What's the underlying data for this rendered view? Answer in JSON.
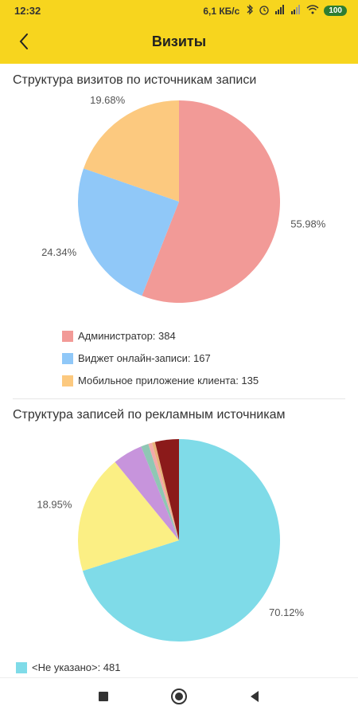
{
  "status_bar": {
    "time": "12:32",
    "speed": "6,1 КБ/с",
    "battery": "100"
  },
  "header": {
    "title": "Визиты"
  },
  "colors": {
    "header_bg": "#f7d51e",
    "admin": "#f29a97",
    "widget": "#90c8f8",
    "mobile": "#fcc97f",
    "unspecified": "#7fdbe8",
    "yellow_slice": "#fbef84",
    "purple_slice": "#c794dc",
    "dark_red_slice": "#8b1a1a"
  },
  "chart_data": [
    {
      "type": "pie",
      "title": "Структура визитов по источникам записи",
      "slices": [
        {
          "label": "Администратор: 384",
          "value": 55.98,
          "display": "55.98%",
          "color": "#f29a97"
        },
        {
          "label": "Виджет онлайн-записи: 167",
          "value": 24.34,
          "display": "24.34%",
          "color": "#90c8f8"
        },
        {
          "label": "Мобильное приложение клиента: 135",
          "value": 19.68,
          "display": "19.68%",
          "color": "#fcc97f"
        }
      ]
    },
    {
      "type": "pie",
      "title": "Структура записей по рекламным источникам",
      "slices": [
        {
          "label": "<Не указано>: 481",
          "value": 70.12,
          "display": "70.12%",
          "color": "#7fdbe8"
        },
        {
          "label": "",
          "value": 18.95,
          "display": "18.95%",
          "color": "#fbef84"
        },
        {
          "label": "",
          "value": 4.81,
          "display": "4.81%",
          "color": "#c794dc"
        },
        {
          "label": "",
          "value": 1.2,
          "display": "",
          "color": "#8fc7b4"
        },
        {
          "label": "",
          "value": 0.6,
          "display": "",
          "color": "#f3a9a9"
        },
        {
          "label": "",
          "value": 0.5,
          "display": "",
          "color": "#e8b27a"
        },
        {
          "label": "",
          "value": 3.82,
          "display": "",
          "color": "#8b1a1a"
        }
      ]
    }
  ],
  "legend1": [
    {
      "label": "Администратор: 384",
      "color": "#f29a97"
    },
    {
      "label": "Виджет онлайн-записи: 167",
      "color": "#90c8f8"
    },
    {
      "label": "Мобильное приложение клиента: 135",
      "color": "#fcc97f"
    }
  ],
  "legend2": [
    {
      "label": "<Не указано>: 481",
      "color": "#7fdbe8"
    }
  ],
  "nav": {
    "recent": "stop-square-icon",
    "home": "home-circle-icon",
    "back": "back-triangle-icon"
  }
}
